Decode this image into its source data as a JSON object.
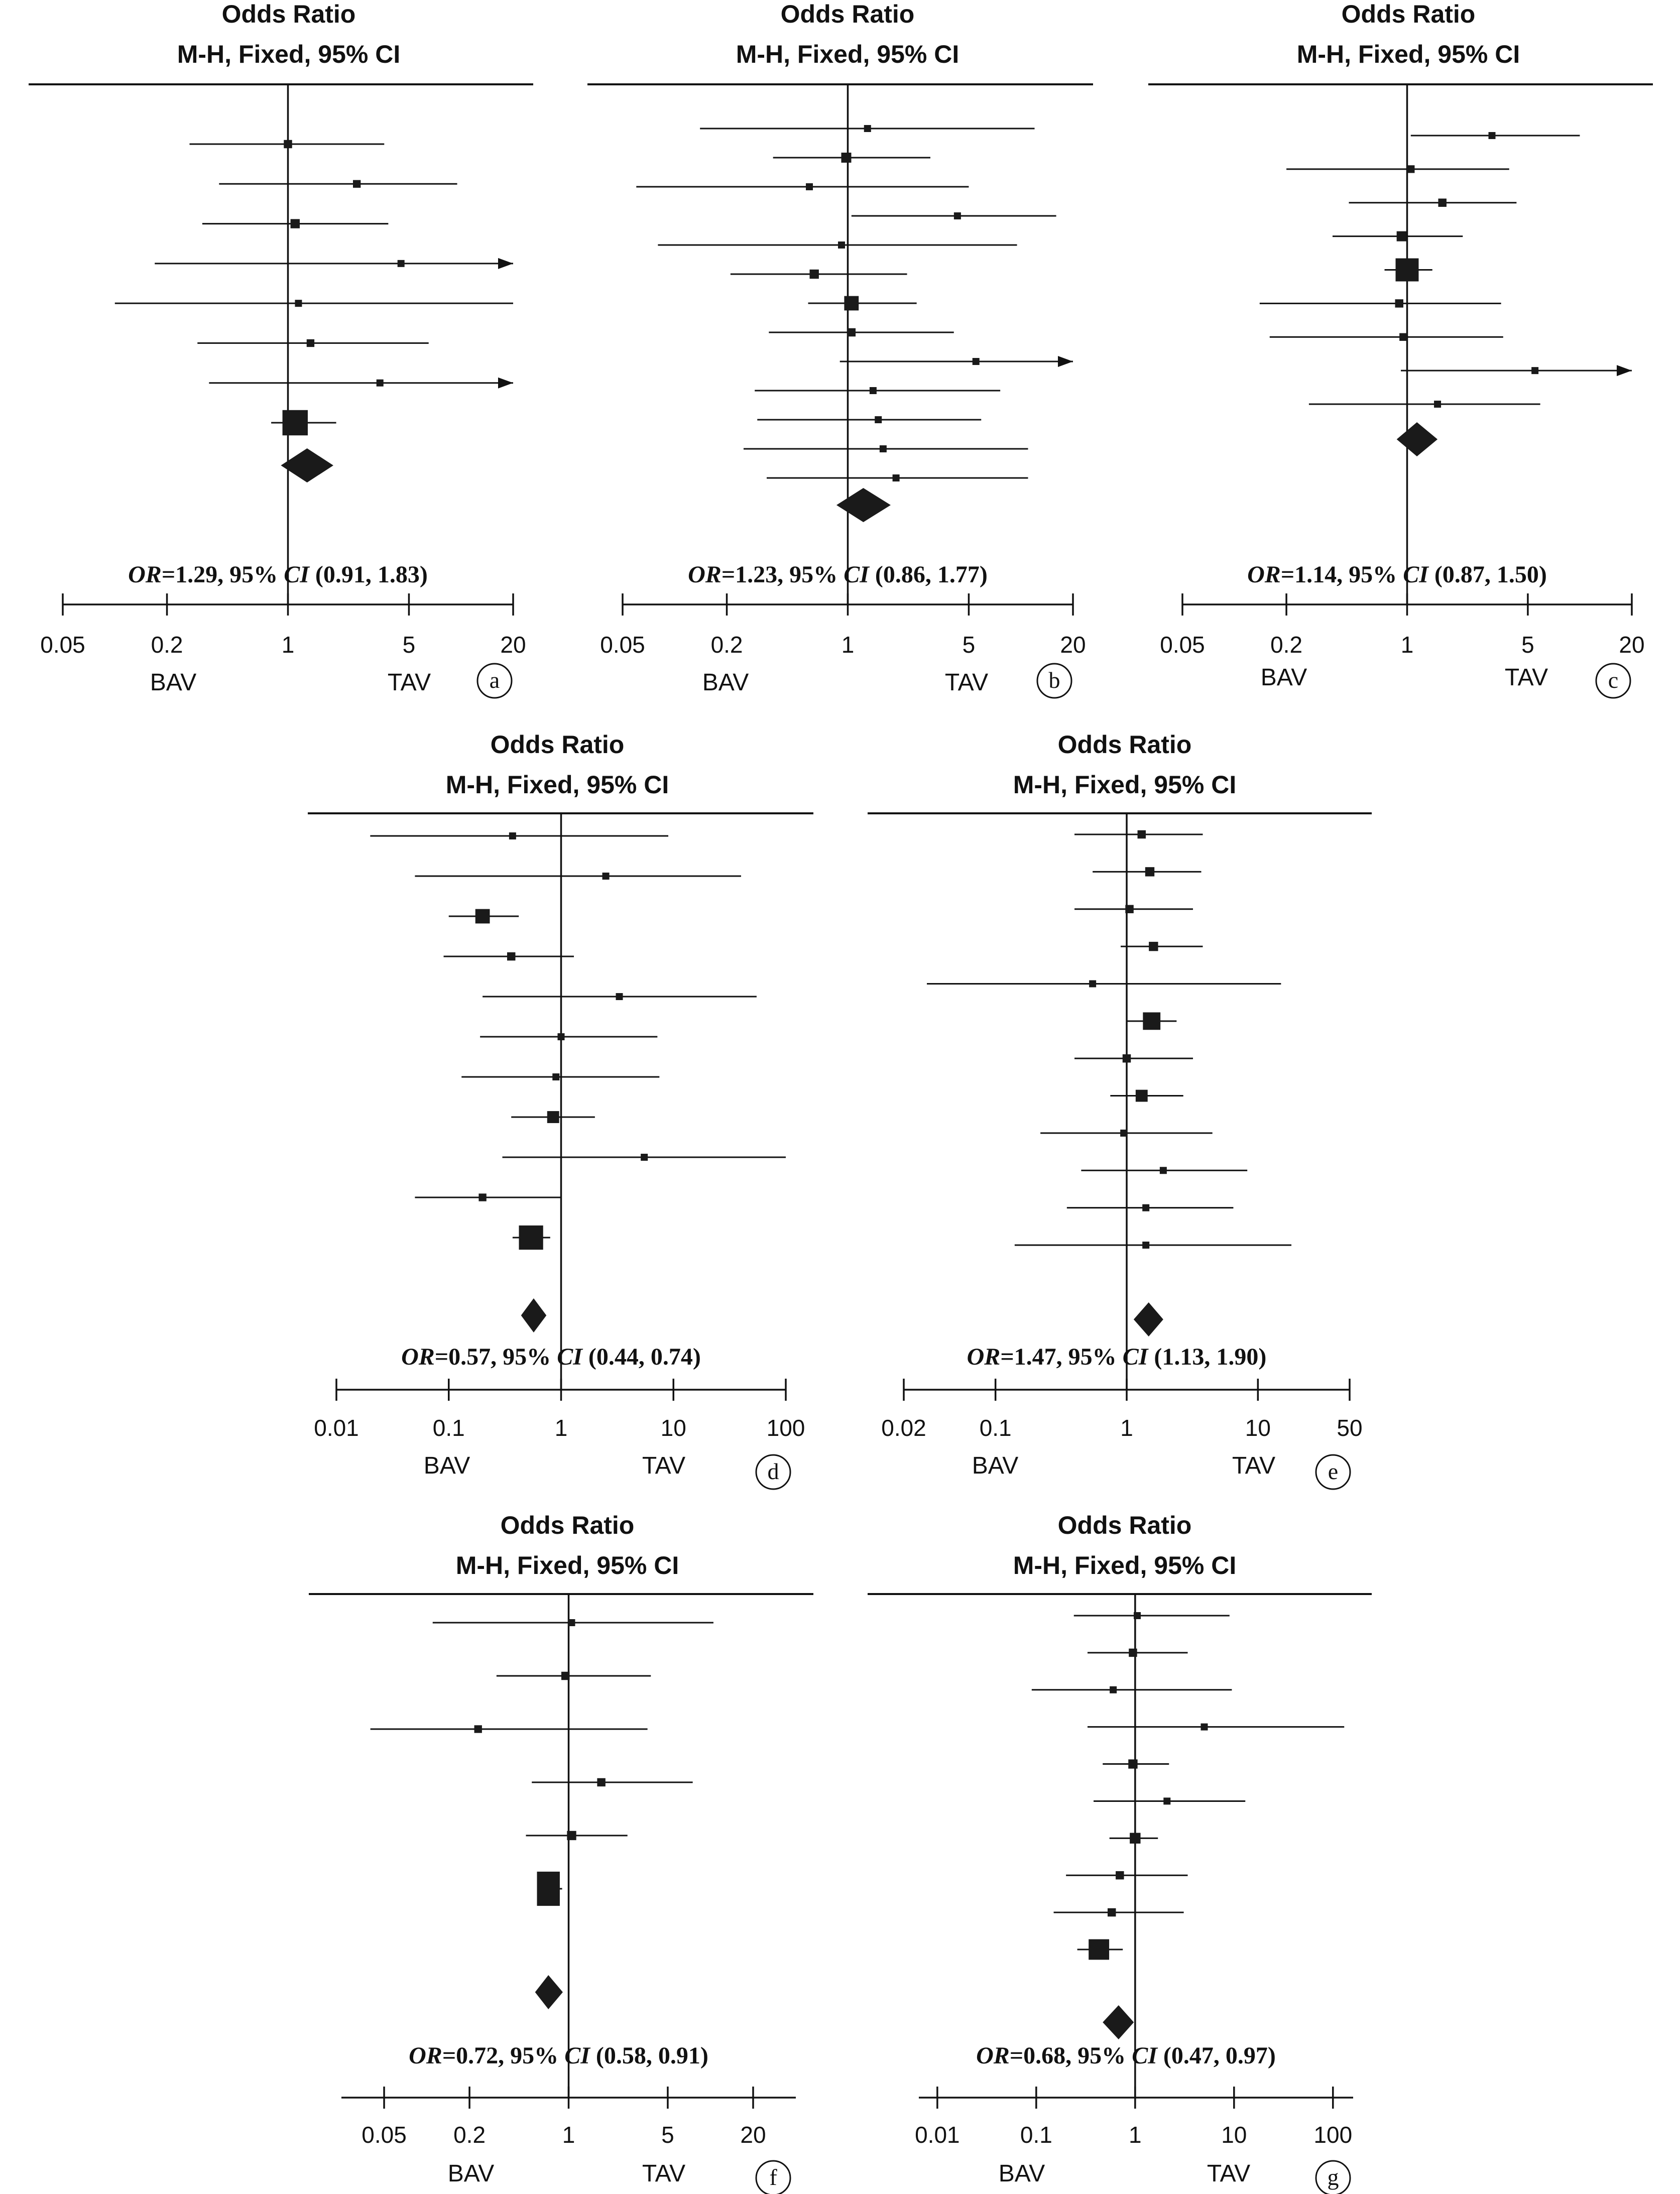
{
  "chart_data": [
    {
      "type": "forest",
      "panel_label": "a",
      "header_line1": "Odds Ratio",
      "header_line2": "M-H, Fixed, 95% CI",
      "axis_ticks": [
        0.05,
        0.2,
        1,
        5,
        20
      ],
      "axis_tick_labels": [
        "0.05",
        "0.2",
        "1",
        "5",
        "20"
      ],
      "xlim": [
        0.05,
        20
      ],
      "left_label": "BAV",
      "right_label": "TAV",
      "studies": [
        {
          "or": 1.0,
          "lo": 0.27,
          "hi": 3.6,
          "weight": 0.02
        },
        {
          "or": 2.5,
          "lo": 0.4,
          "hi": 9.5,
          "weight": 0.015
        },
        {
          "or": 1.1,
          "lo": 0.32,
          "hi": 3.8,
          "weight": 0.03
        },
        {
          "or": 4.5,
          "lo": 0.17,
          "hi": 20,
          "weight": 0.01,
          "arrow_right": true
        },
        {
          "or": 1.15,
          "lo": 0.1,
          "hi": 20,
          "weight": 0.01
        },
        {
          "or": 1.35,
          "lo": 0.3,
          "hi": 6.5,
          "weight": 0.015
        },
        {
          "or": 3.4,
          "lo": 0.35,
          "hi": 20,
          "weight": 0.01,
          "arrow_right": true
        },
        {
          "or": 1.1,
          "lo": 0.8,
          "hi": 1.9,
          "weight": 0.5
        }
      ],
      "pooled": {
        "or": 1.29,
        "lo": 0.91,
        "hi": 1.83
      },
      "summary": {
        "or_label": "OR",
        "or_value": "=1.29,  95% ",
        "ci_label": "CI",
        "ci_value": " (0.91, 1.83)"
      }
    },
    {
      "type": "forest",
      "panel_label": "b",
      "header_line1": "Odds Ratio",
      "header_line2": "M-H, Fixed, 95% CI",
      "axis_ticks": [
        0.05,
        0.2,
        1,
        5,
        20
      ],
      "axis_tick_labels": [
        "0.05",
        "0.2",
        "1",
        "5",
        "20"
      ],
      "xlim": [
        0.05,
        20
      ],
      "left_label": "BAV",
      "right_label": "TAV",
      "studies": [
        {
          "or": 1.3,
          "lo": 0.14,
          "hi": 12,
          "weight": 0.01
        },
        {
          "or": 0.98,
          "lo": 0.37,
          "hi": 3.0,
          "weight": 0.04
        },
        {
          "or": 0.6,
          "lo": 0.06,
          "hi": 5.0,
          "weight": 0.01
        },
        {
          "or": 4.3,
          "lo": 1.05,
          "hi": 16,
          "weight": 0.01
        },
        {
          "or": 0.92,
          "lo": 0.08,
          "hi": 9.5,
          "weight": 0.01
        },
        {
          "or": 0.64,
          "lo": 0.21,
          "hi": 2.2,
          "weight": 0.03
        },
        {
          "or": 1.05,
          "lo": 0.59,
          "hi": 2.5,
          "weight": 0.12
        },
        {
          "or": 1.05,
          "lo": 0.35,
          "hi": 4.1,
          "weight": 0.02
        },
        {
          "or": 5.5,
          "lo": 0.9,
          "hi": 20,
          "weight": 0.01,
          "arrow_right": true
        },
        {
          "or": 1.4,
          "lo": 0.29,
          "hi": 7.6,
          "weight": 0.01
        },
        {
          "or": 1.5,
          "lo": 0.3,
          "hi": 5.9,
          "weight": 0.01
        },
        {
          "or": 1.6,
          "lo": 0.25,
          "hi": 11,
          "weight": 0.01
        },
        {
          "or": 1.9,
          "lo": 0.34,
          "hi": 11,
          "weight": 0.01
        }
      ],
      "pooled": {
        "or": 1.23,
        "lo": 0.86,
        "hi": 1.77
      },
      "summary": {
        "or_label": "OR",
        "or_value": "=1.23,  95% ",
        "ci_label": "CI",
        "ci_value": " (0.86, 1.77)"
      }
    },
    {
      "type": "forest",
      "panel_label": "c",
      "header_line1": "Odds Ratio",
      "header_line2": "M-H, Fixed, 95% CI",
      "axis_ticks": [
        0.05,
        0.2,
        1,
        5,
        20
      ],
      "axis_tick_labels": [
        "0.05",
        "0.2",
        "1",
        "5",
        "20"
      ],
      "xlim": [
        0.05,
        20
      ],
      "left_label": "BAV",
      "right_label": "TAV",
      "studies": [
        {
          "or": 3.1,
          "lo": 1.05,
          "hi": 10,
          "weight": 0.01
        },
        {
          "or": 1.05,
          "lo": 0.2,
          "hi": 3.9,
          "weight": 0.015
        },
        {
          "or": 1.6,
          "lo": 0.46,
          "hi": 4.3,
          "weight": 0.02
        },
        {
          "or": 0.93,
          "lo": 0.37,
          "hi": 2.1,
          "weight": 0.04
        },
        {
          "or": 1.0,
          "lo": 0.74,
          "hi": 1.4,
          "weight": 0.4
        },
        {
          "or": 0.9,
          "lo": 0.14,
          "hi": 3.5,
          "weight": 0.02
        },
        {
          "or": 0.95,
          "lo": 0.16,
          "hi": 3.6,
          "weight": 0.015
        },
        {
          "or": 5.5,
          "lo": 0.92,
          "hi": 20,
          "weight": 0.01,
          "arrow_right": true
        },
        {
          "or": 1.5,
          "lo": 0.27,
          "hi": 5.9,
          "weight": 0.01
        }
      ],
      "pooled": {
        "or": 1.14,
        "lo": 0.87,
        "hi": 1.5
      },
      "summary": {
        "or_label": "OR",
        "or_value": "=1.14,  95% ",
        "ci_label": "CI",
        "ci_value": " (0.87, 1.50)"
      }
    },
    {
      "type": "forest",
      "panel_label": "d",
      "header_line1": "Odds Ratio",
      "header_line2": "M-H, Fixed, 95% CI",
      "axis_ticks": [
        0.01,
        0.1,
        1,
        10,
        100
      ],
      "axis_tick_labels": [
        "0.01",
        "0.1",
        "1",
        "10",
        "100"
      ],
      "xlim": [
        0.01,
        100
      ],
      "left_label": "BAV",
      "right_label": "TAV",
      "studies": [
        {
          "or": 0.37,
          "lo": 0.02,
          "hi": 9.0,
          "weight": 0.01
        },
        {
          "or": 2.5,
          "lo": 0.05,
          "hi": 40,
          "weight": 0.01
        },
        {
          "or": 0.2,
          "lo": 0.1,
          "hi": 0.42,
          "weight": 0.12
        },
        {
          "or": 0.36,
          "lo": 0.09,
          "hi": 1.3,
          "weight": 0.02
        },
        {
          "or": 3.3,
          "lo": 0.2,
          "hi": 55,
          "weight": 0.01
        },
        {
          "or": 1.0,
          "lo": 0.19,
          "hi": 7.2,
          "weight": 0.01
        },
        {
          "or": 0.9,
          "lo": 0.13,
          "hi": 7.5,
          "weight": 0.01
        },
        {
          "or": 0.85,
          "lo": 0.36,
          "hi": 2.0,
          "weight": 0.07
        },
        {
          "or": 5.5,
          "lo": 0.3,
          "hi": 100,
          "weight": 0.01
        },
        {
          "or": 0.2,
          "lo": 0.05,
          "hi": 1.0,
          "weight": 0.015
        },
        {
          "or": 0.54,
          "lo": 0.37,
          "hi": 0.8,
          "weight": 0.45
        }
      ],
      "pooled": {
        "or": 0.57,
        "lo": 0.44,
        "hi": 0.74
      },
      "summary": {
        "or_label": "OR",
        "or_value": "=0.57,  95% ",
        "ci_label": "CI",
        "ci_value": " (0.44, 0.74)"
      }
    },
    {
      "type": "forest",
      "panel_label": "e",
      "header_line1": "Odds Ratio",
      "header_line2": "M-H, Fixed, 95% CI",
      "axis_ticks": [
        0.02,
        0.1,
        1,
        10,
        50
      ],
      "axis_tick_labels": [
        "0.02",
        "0.1",
        "1",
        "10",
        "50"
      ],
      "xlim": [
        0.02,
        50
      ],
      "left_label": "BAV",
      "right_label": "TAV",
      "studies": [
        {
          "or": 1.3,
          "lo": 0.4,
          "hi": 3.8,
          "weight": 0.02
        },
        {
          "or": 1.5,
          "lo": 0.55,
          "hi": 3.7,
          "weight": 0.03
        },
        {
          "or": 1.05,
          "lo": 0.4,
          "hi": 3.2,
          "weight": 0.02
        },
        {
          "or": 1.6,
          "lo": 0.9,
          "hi": 3.8,
          "weight": 0.03
        },
        {
          "or": 0.55,
          "lo": 0.03,
          "hi": 15,
          "weight": 0.01
        },
        {
          "or": 1.55,
          "lo": 1.0,
          "hi": 2.4,
          "weight": 0.2
        },
        {
          "or": 1.0,
          "lo": 0.4,
          "hi": 3.2,
          "weight": 0.02
        },
        {
          "or": 1.3,
          "lo": 0.75,
          "hi": 2.7,
          "weight": 0.07
        },
        {
          "or": 0.95,
          "lo": 0.22,
          "hi": 4.5,
          "weight": 0.01
        },
        {
          "or": 1.9,
          "lo": 0.45,
          "hi": 8.3,
          "weight": 0.01
        },
        {
          "or": 1.4,
          "lo": 0.35,
          "hi": 6.5,
          "weight": 0.01
        },
        {
          "or": 1.4,
          "lo": 0.14,
          "hi": 18,
          "weight": 0.01
        }
      ],
      "pooled": {
        "or": 1.47,
        "lo": 1.13,
        "hi": 1.9
      },
      "summary": {
        "or_label": "OR",
        "or_value": "=1.47,  95% ",
        "ci_label": "CI",
        "ci_value": " (1.13, 1.90)"
      }
    },
    {
      "type": "forest",
      "panel_label": "f",
      "header_line1": "Odds Ratio",
      "header_line2": "M-H, Fixed, 95% CI",
      "axis_ticks": [
        0.05,
        0.2,
        1,
        5,
        20
      ],
      "axis_tick_labels": [
        "0.05",
        "0.2",
        "1",
        "5",
        "20"
      ],
      "xlim": [
        0.025,
        40
      ],
      "left_label": "BAV",
      "right_label": "TAV",
      "studies": [
        {
          "or": 1.05,
          "lo": 0.11,
          "hi": 10.5,
          "weight": 0.01
        },
        {
          "or": 0.95,
          "lo": 0.31,
          "hi": 3.8,
          "weight": 0.02
        },
        {
          "or": 0.23,
          "lo": 0.04,
          "hi": 3.6,
          "weight": 0.015
        },
        {
          "or": 1.7,
          "lo": 0.55,
          "hi": 7.5,
          "weight": 0.02
        },
        {
          "or": 1.05,
          "lo": 0.5,
          "hi": 2.6,
          "weight": 0.03
        },
        {
          "or": 0.72,
          "lo": 0.6,
          "hi": 0.9,
          "weight": 0.9
        }
      ],
      "pooled": {
        "or": 0.72,
        "lo": 0.58,
        "hi": 0.91
      },
      "summary": {
        "or_label": "OR",
        "or_value": "=0.72,  95% ",
        "ci_label": "CI",
        "ci_value": " (0.58, 0.91)"
      }
    },
    {
      "type": "forest",
      "panel_label": "g",
      "header_line1": "Odds Ratio",
      "header_line2": "M-H, Fixed, 95% CI",
      "axis_ticks": [
        0.01,
        0.1,
        1,
        10,
        100
      ],
      "axis_tick_labels": [
        "0.01",
        "0.1",
        "1",
        "10",
        "100"
      ],
      "xlim": [
        0.0065,
        160
      ],
      "left_label": "BAV",
      "right_label": "TAV",
      "studies": [
        {
          "or": 1.05,
          "lo": 0.24,
          "hi": 9.0,
          "weight": 0.01
        },
        {
          "or": 0.95,
          "lo": 0.33,
          "hi": 3.4,
          "weight": 0.02
        },
        {
          "or": 0.6,
          "lo": 0.09,
          "hi": 9.5,
          "weight": 0.01
        },
        {
          "or": 5.0,
          "lo": 0.33,
          "hi": 130,
          "weight": 0.01
        },
        {
          "or": 0.95,
          "lo": 0.47,
          "hi": 2.2,
          "weight": 0.03
        },
        {
          "or": 2.1,
          "lo": 0.38,
          "hi": 13,
          "weight": 0.01
        },
        {
          "or": 1.0,
          "lo": 0.55,
          "hi": 1.7,
          "weight": 0.05
        },
        {
          "or": 0.7,
          "lo": 0.2,
          "hi": 3.4,
          "weight": 0.02
        },
        {
          "or": 0.58,
          "lo": 0.15,
          "hi": 3.1,
          "weight": 0.02
        },
        {
          "or": 0.43,
          "lo": 0.26,
          "hi": 0.75,
          "weight": 0.3
        }
      ],
      "pooled": {
        "or": 0.68,
        "lo": 0.47,
        "hi": 0.97
      },
      "summary": {
        "or_label": "OR",
        "or_value": "=0.68,  95% ",
        "ci_label": "CI",
        "ci_value": " (0.47, 0.97)"
      }
    }
  ]
}
